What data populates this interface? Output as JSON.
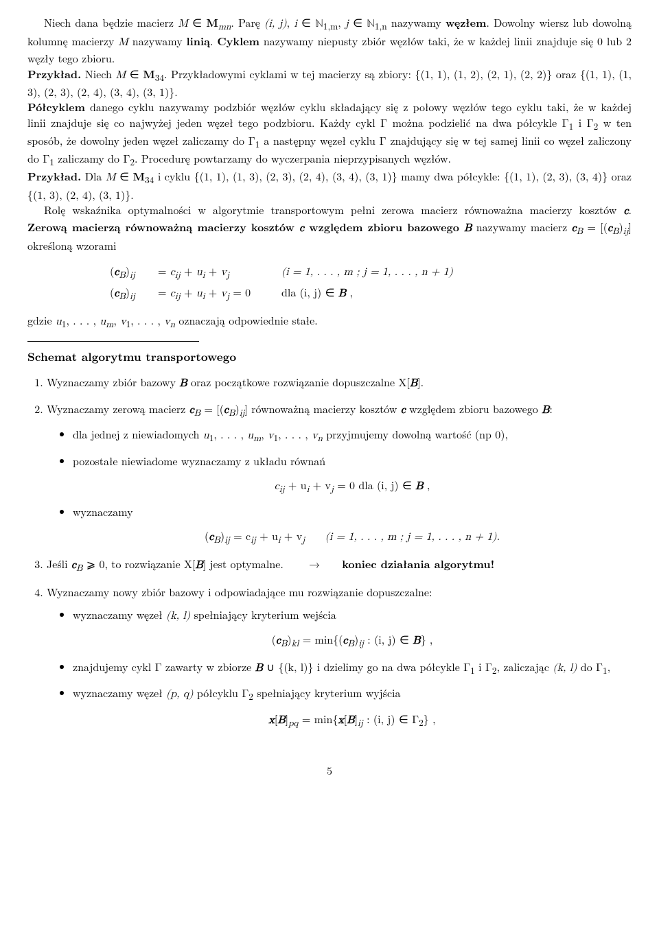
{
  "para1_a": "Niech dana będzie macierz ",
  "para1_b": " ∈ ",
  "para1_c": ". Parę ",
  "para1_d": ", ",
  "para1_e": " ∈ ",
  "para1_f": ", ",
  "para1_g": " ∈ ",
  "para1_h": " nazywamy ",
  "para1_node": "węzłem",
  "para1_i": ". Dowolny wiersz lub dowolną kolumnę macierzy ",
  "para1_j": " nazywamy ",
  "para1_line": "linią",
  "para1_k": ". ",
  "para1_cycle": "Cyklem",
  "para1_l": " nazywamy niepusty zbiór węzłów taki, że w każdej linii znajduje się 0 lub 2 węzły tego zbioru.",
  "ex1_label": "Przykład.",
  "ex1_a": " Niech ",
  "ex1_b": " ∈ ",
  "ex1_c": ". Przykładowymi cyklami w tej macierzy są zbiory: ",
  "ex1_set1": "{(1, 1), (1, 2), (2, 1), (2, 2)}",
  "ex1_d": " oraz ",
  "ex1_set2": "{(1, 1), (1, 3), (2, 3), (2, 4), (3, 4), (3, 1)}",
  "ex1_e": ".",
  "para2_half": "Półcyklem",
  "para2_a": " danego cyklu nazywamy podzbiór węzłów cyklu składający się z połowy węzłów tego cyklu taki, że w każdej linii znajduje się co najwyżej jeden węzeł tego podzbioru. Każdy cykl Γ można podzielić na dwa półcykle Γ",
  "para2_b": " i Γ",
  "para2_c": " w ten sposób, że dowolny jeden węzeł zaliczamy do Γ",
  "para2_d": " a następny węzeł cyklu Γ znajdujący się w tej samej linii co węzeł zaliczony do Γ",
  "para2_e": " zaliczamy do Γ",
  "para2_f": ". Procedurę powtarzamy do wyczerpania nieprzypisanych węzłów.",
  "ex2_label": "Przykład.",
  "ex2_a": " Dla ",
  "ex2_b": " ∈ ",
  "ex2_c": " i cyklu ",
  "ex2_set": "{(1, 1), (1, 3), (2, 3), (2, 4), (3, 4), (3, 1)}",
  "ex2_d": " mamy dwa półcykle: ",
  "ex2_half1": "{(1, 1), (2, 3), (3, 4)}",
  "ex2_e": " oraz ",
  "ex2_half2": "{(1, 3), (2, 4), (3, 1)}",
  "ex2_f": ".",
  "para3_a": "Rolę wskaźnika optymalności w algorytmie transportowym pełni zerowa macierz równoważna macierzy kosztów ",
  "para3_b": ". ",
  "para3_zero": "Zerową macierzą równoważną macierzy kosztów ",
  "para3_zero2": " względem zbioru bazowego ",
  "para3_c": " nazywamy macierz ",
  "para3_d": " = [(",
  "para3_e": ")",
  "para3_f": "] określoną wzorami",
  "eq1_lhs": "(",
  "eq1_sub": "B",
  "eq1_ij": "ij",
  "eq1_eq": "= ",
  "eq1_rhs": " + ",
  "eq1_rng": "(i = 1, . . . , m ;  j = 1, . . . , n + 1)",
  "eq2_rhs2": " = 0",
  "eq2_rng": "dla   (i, j) ∈ ",
  "eq2_comma": " ,",
  "para4_a": "gdzie ",
  "para4_b": " oznaczają odpowiednie stałe.",
  "u1um": "u",
  "v1vn": "v",
  "schema_title": "Schemat algorytmu transportowego",
  "step1_a": "Wyznaczamy zbiór bazowy ",
  "step1_b": " oraz początkowe rozwiązanie dopuszczalne X[",
  "step1_c": "].",
  "step2_a": "Wyznaczamy zerową macierz ",
  "step2_b": " = [(",
  "step2_c": ")",
  "step2_d": "] równoważną macierzy kosztów ",
  "step2_e": " względem zbioru bazowego ",
  "step2_f": ":",
  "b1_a": "dla jednej z niewiadomych ",
  "b1_b": " przyjmujemy dowolną wartość (np 0),",
  "b2_a": "pozostałe niewiadome wyznaczamy z układu równań",
  "b3": "wyznaczamy",
  "eq3": " + u",
  "eq3b": " + v",
  "eq3c": " = 0   dla   (i, j) ∈ ",
  "eq3d": " ,",
  "eq4a": "(",
  "eq4b": ")",
  "eq4c": " = c",
  "eq4d": " + u",
  "eq4e": " + v",
  "eq4f": "    (i = 1, . . . , m ;  j = 1, . . . , n + 1).",
  "step3_a": "Jeśli ",
  "step3_b": " ⩾ 0, to rozwiązanie X[",
  "step3_c": "] jest optymalne.",
  "step3_arrow": "→",
  "step3_end": "koniec działania algorytmu!",
  "step4": "Wyznaczamy nowy zbiór bazowy i odpowiadające mu rozwiązanie dopuszczalne:",
  "b4_a": "wyznaczamy węzeł ",
  "b4_b": " spełniający kryterium wejścia",
  "eq5a": "(",
  "eq5b": ")",
  "eq5c": " = min{(",
  "eq5d": ")",
  "eq5e": " : (i, j) ∈ ",
  "eq5f": "} ,",
  "b5_a": "znajdujemy cykl Γ zawarty w zbiorze ",
  "b5_b": " ∪ {(k, l)} i dzielimy go na dwa półcykle Γ",
  "b5_c": " i Γ",
  "b5_d": ", zaliczając ",
  "b5_e": " do Γ",
  "b5_f": ",",
  "b6_a": "wyznaczamy węzeł ",
  "b6_b": " półcyklu Γ",
  "b6_c": " spełniający kryterium wyjścia",
  "eq6a": "[",
  "eq6b": "]",
  "eq6c": " = min{",
  "eq6d": "[",
  "eq6e": "]",
  "eq6f": " : (i, j) ∈ Γ",
  "eq6g": "} ,",
  "pagenum": "5",
  "sym": {
    "M": "M",
    "Mmn": "mn",
    "ij": "(i, j)",
    "i": "i",
    "j": "j",
    "N": "ℕ",
    "N1m": "1,m",
    "N1n": "1,n",
    "M34": "34",
    "c": "c",
    "cB": "c",
    "B": "B",
    "cij": "c",
    "ui": "u",
    "vj": "v",
    "kl": "(k, l)",
    "pq": "(p, q)",
    "x": "x",
    "sub1": "1",
    "sub2": "2",
    "subi": "i",
    "subj": "j",
    "subij": "ij",
    "subkl": "kl",
    "subpq": "pq",
    "subm": "m",
    "subn": "n"
  }
}
